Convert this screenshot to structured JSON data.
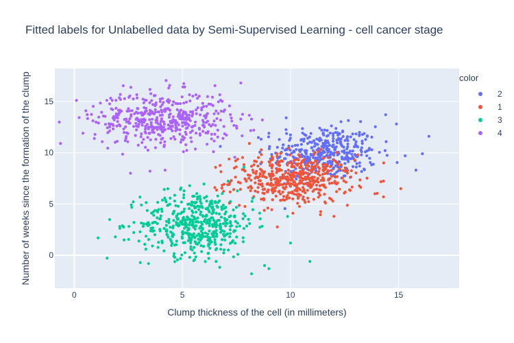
{
  "chart_data": {
    "type": "scatter",
    "title": "Fitted labels for Unlabelled data by Semi-Supervised Learning - cell cancer stage",
    "xlabel": "Clump thickness of the cell (in millimeters)",
    "ylabel": "Number of weeks since the formation of the clump",
    "xlim": [
      -0.9,
      17.8
    ],
    "ylim": [
      -3.2,
      18.2
    ],
    "x_ticks": [
      "0",
      "5",
      "10",
      "15"
    ],
    "x_tick_values": [
      0,
      5,
      10,
      15
    ],
    "y_ticks": [
      "0",
      "5",
      "10",
      "15"
    ],
    "y_tick_values": [
      0,
      5,
      10,
      15
    ],
    "grid": true,
    "legend_title": "color",
    "legend_position": "top-right",
    "series": [
      {
        "name": "2",
        "color": "#636efa",
        "center": [
          11.6,
          10.0
        ],
        "spread": [
          1.2,
          1.3
        ],
        "count": 380,
        "extra_points": [
          [
            14.4,
            13.7
          ],
          [
            15.3,
            9.7
          ],
          [
            15.8,
            8.3
          ],
          [
            16.1,
            9.9
          ],
          [
            16.4,
            11.6
          ],
          [
            14.9,
            12.8
          ],
          [
            9.0,
            11.9
          ],
          [
            9.8,
            13.4
          ]
        ]
      },
      {
        "name": "1",
        "color": "#ef553b",
        "center": [
          10.1,
          7.4
        ],
        "spread": [
          1.4,
          1.2
        ],
        "count": 480,
        "extra_points": [
          [
            6.5,
            6.6
          ],
          [
            7.4,
            8.5
          ],
          [
            8.1,
            10.9
          ],
          [
            14.3,
            5.7
          ],
          [
            15.1,
            6.5
          ],
          [
            13.9,
            6.0
          ]
        ]
      },
      {
        "name": "3",
        "color": "#00cc96",
        "center": [
          5.7,
          3.1
        ],
        "spread": [
          1.3,
          1.6
        ],
        "count": 480,
        "extra_points": [
          [
            1.1,
            1.7
          ],
          [
            1.9,
            1.8
          ],
          [
            2.3,
            1.5
          ],
          [
            2.1,
            2.8
          ],
          [
            8.2,
            -1.8
          ],
          [
            8.8,
            -1.0
          ],
          [
            9.0,
            -1.3
          ],
          [
            10.9,
            -0.6
          ],
          [
            10.0,
            1.2
          ]
        ]
      },
      {
        "name": "4",
        "color": "#ab63fa",
        "center": [
          4.1,
          13.3
        ],
        "spread": [
          1.6,
          1.3
        ],
        "count": 460,
        "extra_points": [
          [
            0.1,
            15.1
          ],
          [
            0.4,
            11.9
          ],
          [
            7.7,
            16.8
          ],
          [
            8.3,
            12.2
          ],
          [
            7.5,
            12.6
          ],
          [
            3.5,
            8.2
          ],
          [
            2.6,
            8.0
          ],
          [
            4.2,
            8.3
          ]
        ]
      }
    ]
  }
}
